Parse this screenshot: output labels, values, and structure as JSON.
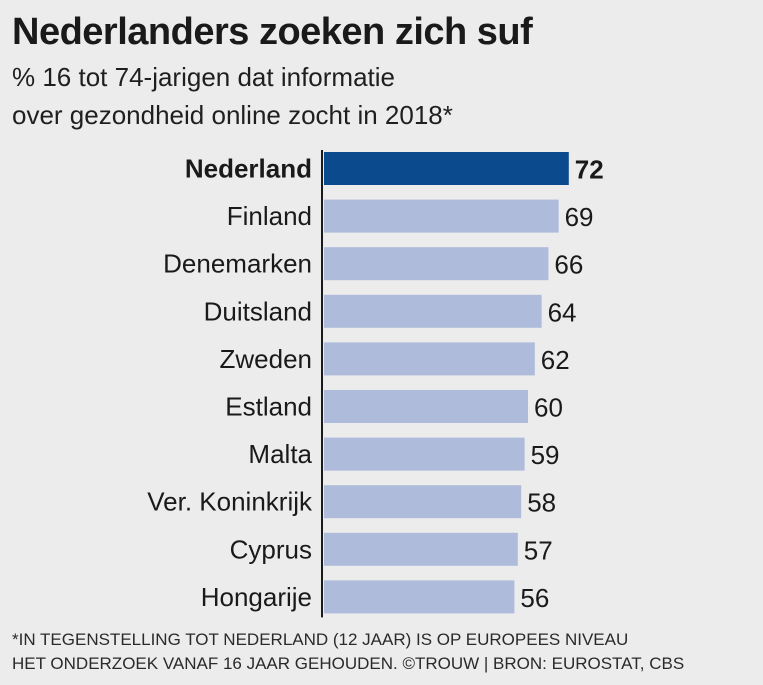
{
  "title": "Nederlanders zoeken zich suf",
  "subtitle": [
    "% 16 tot 74-jarigen dat informatie",
    "over gezondheid online zocht in 2018*"
  ],
  "footnote": [
    "*IN TEGENSTELLING TOT NEDERLAND (12 JAAR) IS OP EUROPEES NIVEAU",
    "HET ONDERZOEK VANAF 16 JAAR GEHOUDEN. ©TROUW | BRON: EUROSTAT, CBS"
  ],
  "colors": {
    "highlight": "#0b4a8c",
    "bar": "#aebbdb",
    "background": "#ececec"
  },
  "chart_data": {
    "type": "bar",
    "orientation": "horizontal",
    "categories": [
      "Nederland",
      "Finland",
      "Denemarken",
      "Duitsland",
      "Zweden",
      "Estland",
      "Malta",
      "Ver. Koninkrijk",
      "Cyprus",
      "Hongarije"
    ],
    "values": [
      72,
      69,
      66,
      64,
      62,
      60,
      59,
      58,
      57,
      56
    ],
    "highlight": "Nederland",
    "xlim": [
      0,
      100
    ],
    "grid": false
  }
}
